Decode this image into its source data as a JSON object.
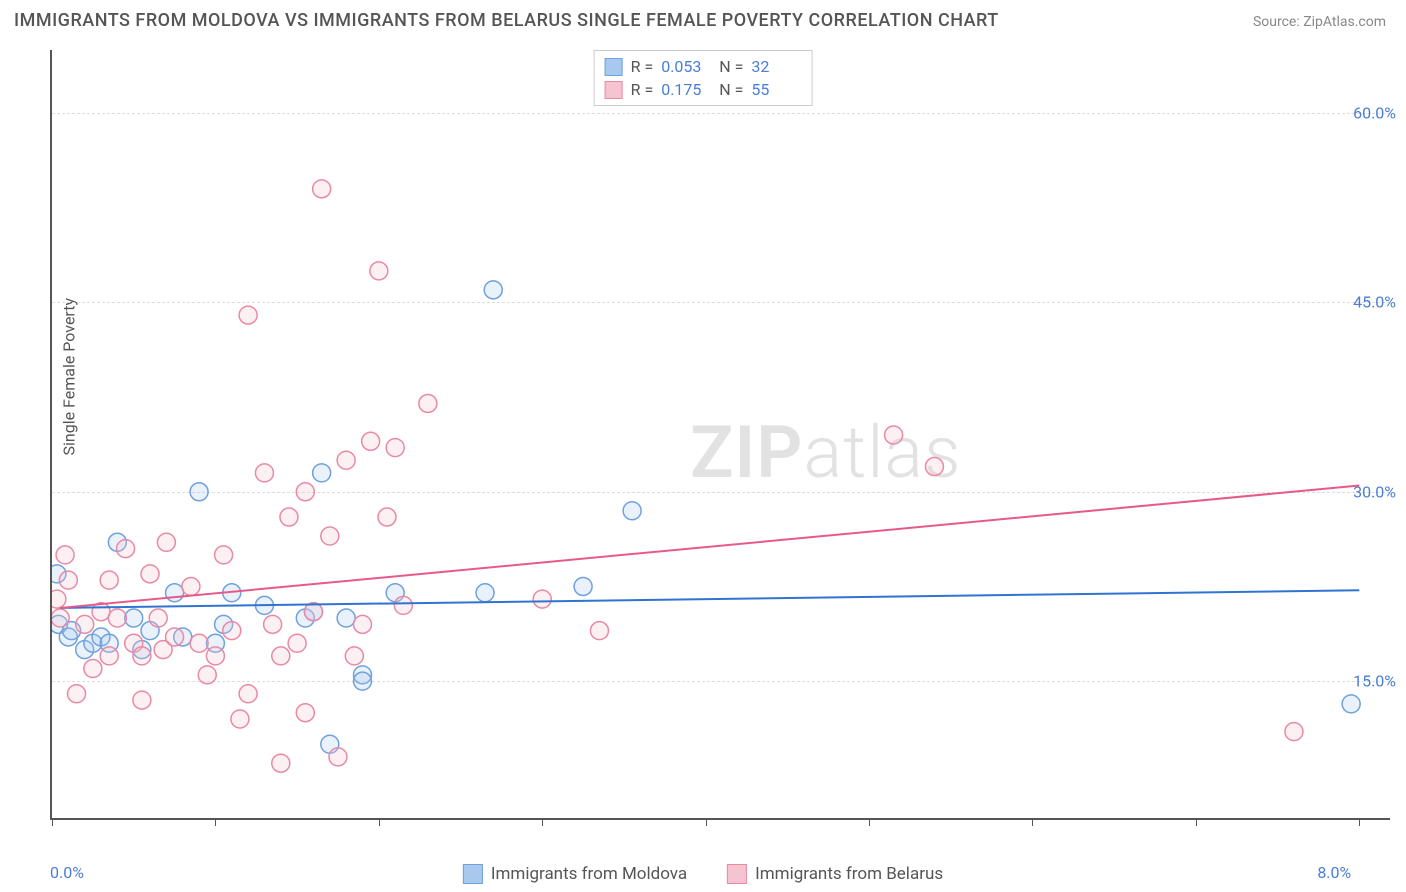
{
  "title": "IMMIGRANTS FROM MOLDOVA VS IMMIGRANTS FROM BELARUS SINGLE FEMALE POVERTY CORRELATION CHART",
  "source_label": "Source: ",
  "source_value": "ZipAtlas.com",
  "y_axis_label": "Single Female Poverty",
  "watermark_bold": "ZIP",
  "watermark_rest": "atlas",
  "chart": {
    "type": "scatter",
    "background_color": "#ffffff",
    "grid_color": "#dddddd",
    "axis_color": "#555555",
    "xlim": [
      0,
      8.2
    ],
    "ylim": [
      4,
      65
    ],
    "x_ticks": [
      0.0,
      1.0,
      2.0,
      3.0,
      4.0,
      5.0,
      6.0,
      7.0,
      8.0
    ],
    "x_tick_labels_shown": {
      "0.0": "0.0%",
      "8.0": "8.0%"
    },
    "y_gridlines": [
      15,
      30,
      45,
      60
    ],
    "y_tick_labels": {
      "15": "15.0%",
      "30": "30.0%",
      "45": "45.0%",
      "60": "60.0%"
    },
    "bubble_radius": 9,
    "bubble_stroke_width": 1.5,
    "bubble_fill_opacity": 0.25,
    "line_width": 2,
    "series": [
      {
        "name": "Immigrants from Moldova",
        "color_fill": "#a9c8ee",
        "color_stroke": "#6fa1dd",
        "line_color": "#2f74d0",
        "r_value": "0.053",
        "n_value": "32",
        "trend": {
          "x1": 0.05,
          "y1": 20.8,
          "x2": 8.0,
          "y2": 22.2
        },
        "points": [
          [
            0.03,
            23.5
          ],
          [
            0.04,
            19.5
          ],
          [
            0.1,
            18.5
          ],
          [
            0.12,
            19.0
          ],
          [
            0.2,
            17.5
          ],
          [
            0.25,
            18.0
          ],
          [
            0.3,
            18.5
          ],
          [
            0.35,
            18.0
          ],
          [
            0.4,
            26.0
          ],
          [
            0.5,
            20.0
          ],
          [
            0.55,
            17.5
          ],
          [
            0.6,
            19.0
          ],
          [
            0.75,
            22.0
          ],
          [
            0.8,
            18.5
          ],
          [
            0.9,
            30.0
          ],
          [
            1.0,
            18.0
          ],
          [
            1.05,
            19.5
          ],
          [
            1.1,
            22.0
          ],
          [
            1.3,
            21.0
          ],
          [
            1.55,
            20.0
          ],
          [
            1.6,
            20.5
          ],
          [
            1.65,
            31.5
          ],
          [
            1.7,
            10.0
          ],
          [
            1.8,
            20.0
          ],
          [
            1.9,
            15.5
          ],
          [
            1.9,
            15.0
          ],
          [
            2.1,
            22.0
          ],
          [
            2.65,
            22.0
          ],
          [
            2.7,
            46.0
          ],
          [
            3.25,
            22.5
          ],
          [
            3.55,
            28.5
          ],
          [
            7.95,
            13.2
          ]
        ]
      },
      {
        "name": "Immigrants from Belarus",
        "color_fill": "#f5c4d0",
        "color_stroke": "#e98aa4",
        "line_color": "#e65a8a",
        "r_value": "0.175",
        "n_value": "55",
        "trend": {
          "x1": 0.05,
          "y1": 20.8,
          "x2": 8.0,
          "y2": 30.5
        },
        "points": [
          [
            0.03,
            21.5
          ],
          [
            0.05,
            20.0
          ],
          [
            0.08,
            25.0
          ],
          [
            0.1,
            23.0
          ],
          [
            0.15,
            14.0
          ],
          [
            0.2,
            19.5
          ],
          [
            0.25,
            16.0
          ],
          [
            0.3,
            20.5
          ],
          [
            0.35,
            17.0
          ],
          [
            0.35,
            23.0
          ],
          [
            0.4,
            20.0
          ],
          [
            0.45,
            25.5
          ],
          [
            0.5,
            18.0
          ],
          [
            0.55,
            17.0
          ],
          [
            0.55,
            13.5
          ],
          [
            0.6,
            23.5
          ],
          [
            0.65,
            20.0
          ],
          [
            0.68,
            17.5
          ],
          [
            0.7,
            26.0
          ],
          [
            0.75,
            18.5
          ],
          [
            0.85,
            22.5
          ],
          [
            0.9,
            18.0
          ],
          [
            0.95,
            15.5
          ],
          [
            1.0,
            17.0
          ],
          [
            1.05,
            25.0
          ],
          [
            1.1,
            19.0
          ],
          [
            1.15,
            12.0
          ],
          [
            1.2,
            44.0
          ],
          [
            1.2,
            14.0
          ],
          [
            1.3,
            31.5
          ],
          [
            1.35,
            19.5
          ],
          [
            1.4,
            17.0
          ],
          [
            1.4,
            8.5
          ],
          [
            1.45,
            28.0
          ],
          [
            1.5,
            18.0
          ],
          [
            1.55,
            12.5
          ],
          [
            1.55,
            30.0
          ],
          [
            1.6,
            20.5
          ],
          [
            1.65,
            54.0
          ],
          [
            1.7,
            26.5
          ],
          [
            1.75,
            9.0
          ],
          [
            1.8,
            32.5
          ],
          [
            1.85,
            17.0
          ],
          [
            1.9,
            19.5
          ],
          [
            1.95,
            34.0
          ],
          [
            2.0,
            47.5
          ],
          [
            2.05,
            28.0
          ],
          [
            2.1,
            33.5
          ],
          [
            2.15,
            21.0
          ],
          [
            2.3,
            37.0
          ],
          [
            3.0,
            21.5
          ],
          [
            3.35,
            19.0
          ],
          [
            5.15,
            34.5
          ],
          [
            5.4,
            32.0
          ],
          [
            7.6,
            11.0
          ]
        ]
      }
    ]
  }
}
